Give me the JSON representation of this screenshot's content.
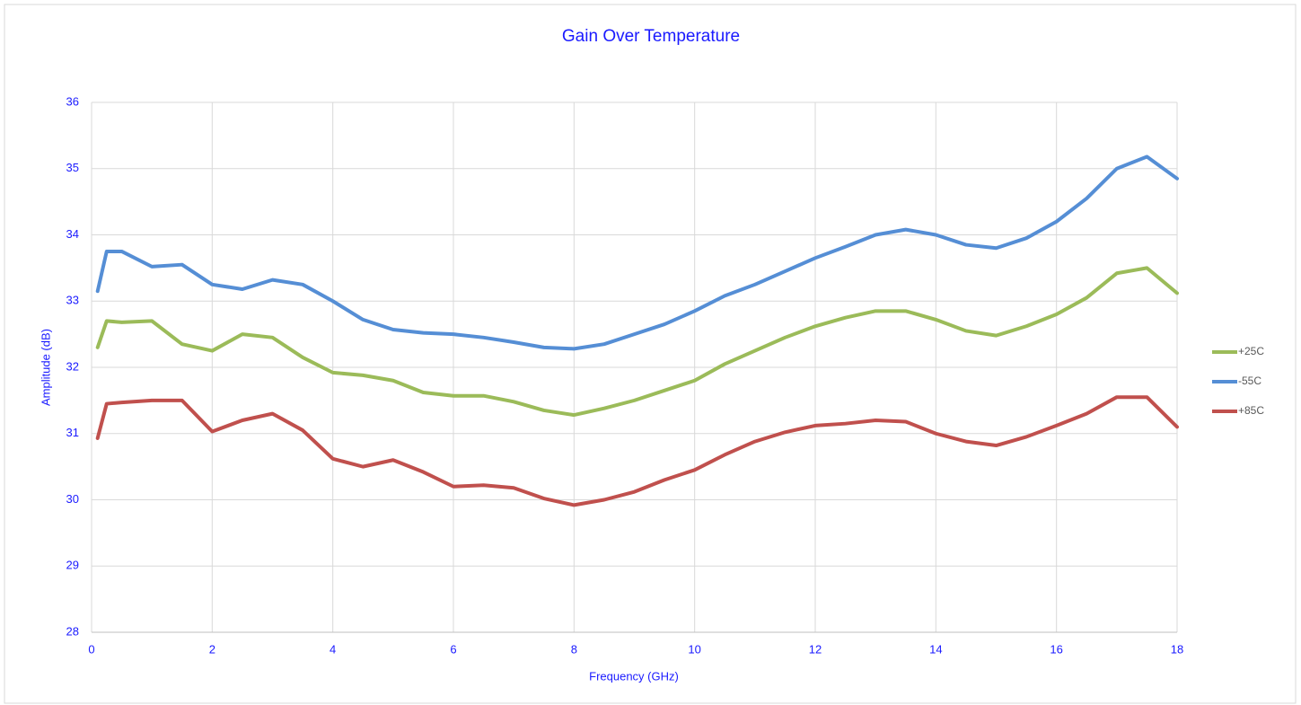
{
  "chart_data": {
    "type": "line",
    "title": "Gain Over Temperature",
    "x_label": "Frequency (GHz)",
    "y_label": "Amplitude (dB)",
    "x": [
      0.1,
      0.25,
      0.5,
      1.0,
      1.5,
      2.0,
      2.5,
      3.0,
      3.5,
      4.0,
      4.5,
      5.0,
      5.5,
      6.0,
      6.5,
      7.0,
      7.5,
      8.0,
      8.5,
      9.0,
      9.5,
      10.0,
      10.5,
      11.0,
      11.5,
      12.0,
      12.5,
      13.0,
      13.5,
      14.0,
      14.5,
      15.0,
      15.5,
      16.0,
      16.5,
      17.0,
      17.5,
      18.0
    ],
    "series": [
      {
        "name": "+25C",
        "color": "#9bbb59",
        "values": [
          32.3,
          32.7,
          32.68,
          32.7,
          32.35,
          32.25,
          32.5,
          32.45,
          32.15,
          31.92,
          31.88,
          31.8,
          31.62,
          31.57,
          31.57,
          31.48,
          31.35,
          31.28,
          31.38,
          31.5,
          31.65,
          31.8,
          32.05,
          32.25,
          32.45,
          32.62,
          32.75,
          32.85,
          32.85,
          32.72,
          32.55,
          32.48,
          32.62,
          32.8,
          33.05,
          33.42,
          33.5,
          33.12
        ]
      },
      {
        "name": "-55C",
        "color": "#558ed5",
        "values": [
          33.15,
          33.75,
          33.75,
          33.52,
          33.55,
          33.25,
          33.18,
          33.32,
          33.25,
          33.0,
          32.72,
          32.57,
          32.52,
          32.5,
          32.45,
          32.38,
          32.3,
          32.28,
          32.35,
          32.5,
          32.65,
          32.85,
          33.08,
          33.25,
          33.45,
          33.65,
          33.82,
          34.0,
          34.08,
          34.0,
          33.85,
          33.8,
          33.95,
          34.2,
          34.55,
          35.0,
          35.18,
          34.85
        ]
      },
      {
        "name": "+85C",
        "color": "#c0504d",
        "values": [
          30.93,
          31.45,
          31.47,
          31.5,
          31.5,
          31.03,
          31.2,
          31.3,
          31.05,
          30.62,
          30.5,
          30.6,
          30.42,
          30.2,
          30.22,
          30.18,
          30.02,
          29.92,
          30.0,
          30.12,
          30.3,
          30.45,
          30.68,
          30.88,
          31.02,
          31.12,
          31.15,
          31.2,
          31.18,
          31.0,
          30.88,
          30.82,
          30.95,
          31.12,
          31.3,
          31.55,
          31.55,
          31.1
        ]
      }
    ],
    "xlim": [
      0,
      18
    ],
    "xticks": [
      0,
      2,
      4,
      6,
      8,
      10,
      12,
      14,
      16,
      18
    ],
    "ylim": [
      28,
      36
    ],
    "yticks": [
      28,
      29,
      30,
      31,
      32,
      33,
      34,
      35,
      36
    ],
    "grid": true,
    "legend": "right"
  }
}
